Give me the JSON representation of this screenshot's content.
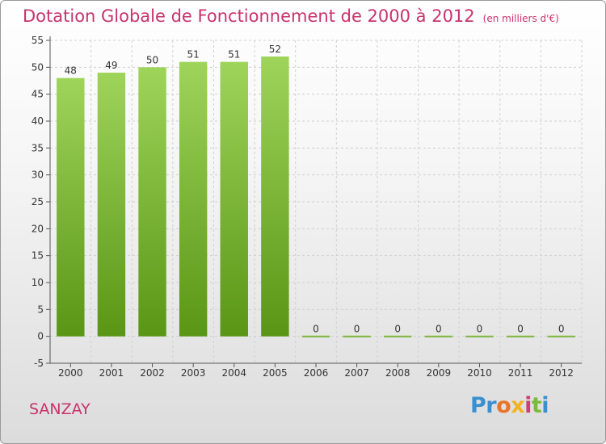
{
  "title": "Dotation Globale de Fonctionnement de 2000 à 2012",
  "unit": "(en milliers d'€)",
  "town": "SANZAY",
  "logo": {
    "letters": [
      "P",
      "r",
      "o",
      "x",
      "i",
      "t",
      "i"
    ],
    "colors": [
      "#3a8fd0",
      "#3a8fd0",
      "#e8742a",
      "#f1b320",
      "#d23c77",
      "#7cba3a",
      "#3a8fd0"
    ]
  },
  "chart_data": {
    "type": "bar",
    "categories": [
      "2000",
      "2001",
      "2002",
      "2003",
      "2004",
      "2005",
      "2006",
      "2007",
      "2008",
      "2009",
      "2010",
      "2011",
      "2012"
    ],
    "values": [
      48,
      49,
      50,
      51,
      51,
      52,
      0,
      0,
      0,
      0,
      0,
      0,
      0
    ],
    "data_labels": [
      "48",
      "49",
      "50",
      "51",
      "51",
      "52",
      "0",
      "0",
      "0",
      "0",
      "0",
      "0",
      "0"
    ],
    "y_ticks": [
      "-5",
      "0",
      "5",
      "10",
      "15",
      "20",
      "25",
      "30",
      "35",
      "40",
      "45",
      "50",
      "55"
    ],
    "ylim": [
      -5,
      55
    ],
    "grid": true,
    "colors": {
      "bar_top": "#9ed45a",
      "bar_bottom": "#5a9616",
      "grid": "#d0d0d0",
      "axis": "#555555",
      "label": "#333333"
    }
  }
}
